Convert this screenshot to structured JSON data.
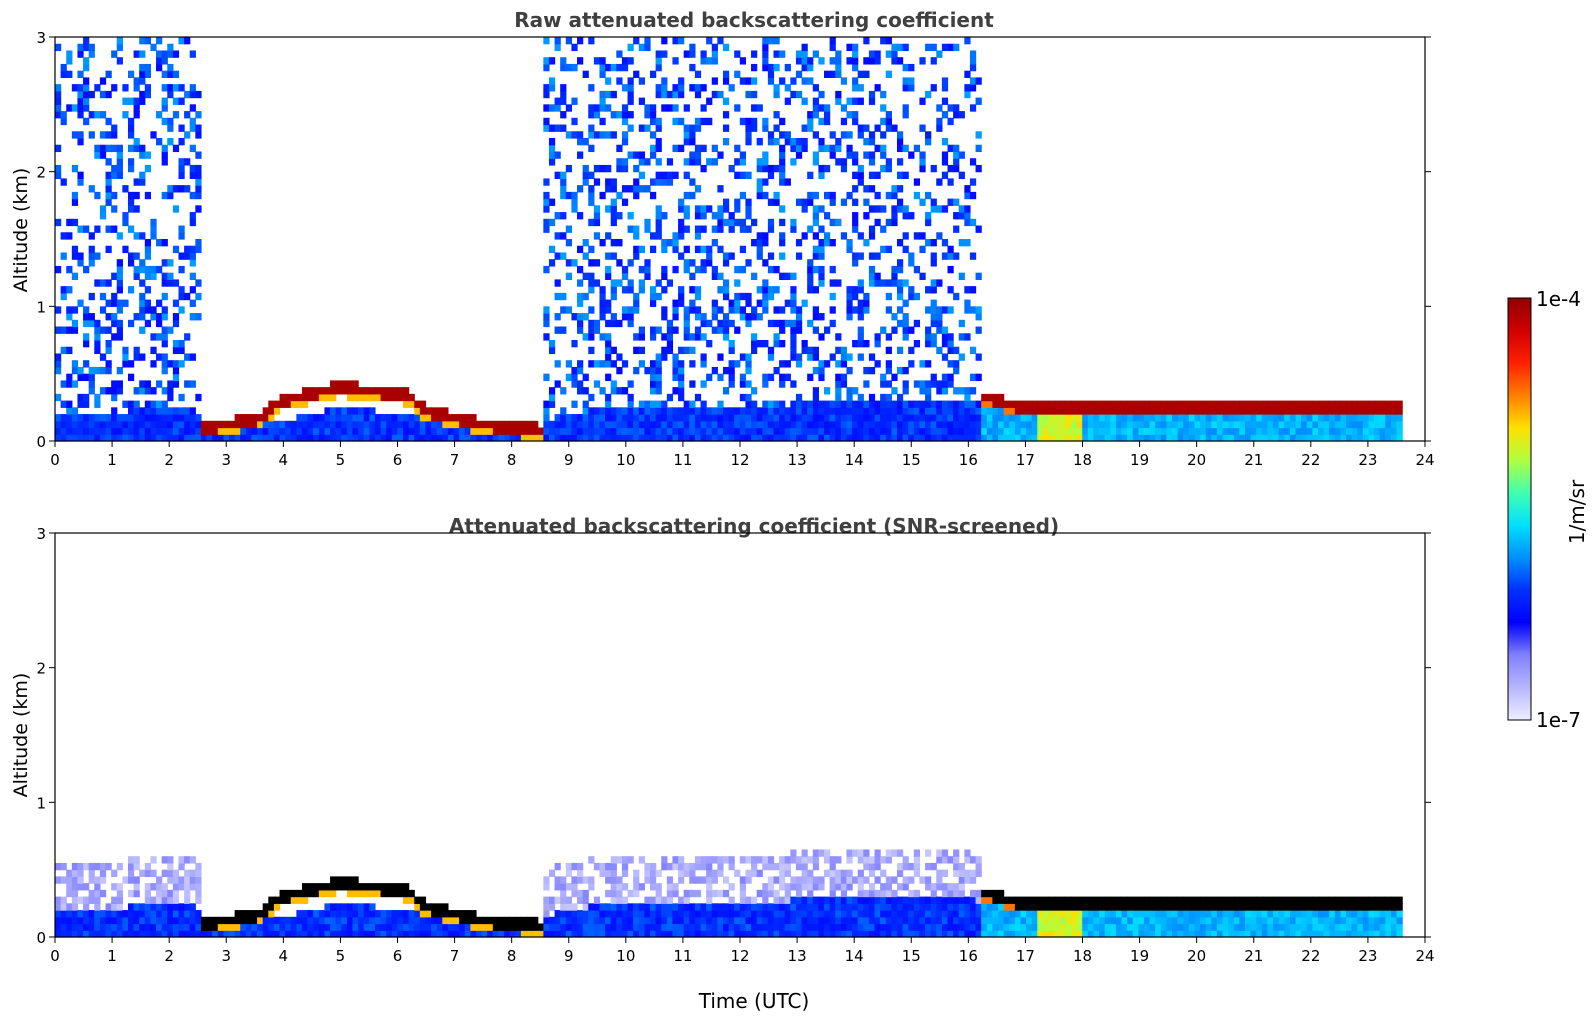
{
  "chart_data": [
    {
      "type": "heatmap",
      "title": "Raw attenuated backscattering coefficient",
      "xlabel": "",
      "ylabel": "Altitude (km)",
      "xlim": [
        0,
        24
      ],
      "ylim": [
        0,
        3
      ],
      "xticks": [
        "0",
        "1",
        "2",
        "3",
        "4",
        "5",
        "6",
        "7",
        "8",
        "9",
        "10",
        "11",
        "12",
        "13",
        "14",
        "15",
        "16",
        "17",
        "18",
        "19",
        "20",
        "21",
        "22",
        "23",
        "24"
      ],
      "yticks": [
        "0",
        "1",
        "2",
        "3"
      ],
      "data_end_hour": 23.6,
      "features": [
        {
          "name": "boundary-layer",
          "from": 0,
          "to": 23.6,
          "top_km": 0.25
        },
        {
          "name": "cloud-base",
          "from": 2.6,
          "to": 8.6,
          "base_km": [
            0.05,
            0.35
          ]
        },
        {
          "name": "fog-layer",
          "from": 16.2,
          "to": 23.6,
          "top_km": 0.38
        }
      ]
    },
    {
      "type": "heatmap",
      "title": "Attenuated backscattering coefficient (SNR-screened)",
      "xlabel": "Time (UTC)",
      "ylabel": "Altitude (km)",
      "xlim": [
        0,
        24
      ],
      "ylim": [
        0,
        3
      ],
      "xticks": [
        "0",
        "1",
        "2",
        "3",
        "4",
        "5",
        "6",
        "7",
        "8",
        "9",
        "10",
        "11",
        "12",
        "13",
        "14",
        "15",
        "16",
        "17",
        "18",
        "19",
        "20",
        "21",
        "22",
        "23",
        "24"
      ],
      "yticks": [
        "0",
        "1",
        "2",
        "3"
      ],
      "data_end_hour": 23.6
    }
  ],
  "colorbar": {
    "label": "1/m/sr",
    "max_label": "1e-4",
    "min_label": "1e-7",
    "stops": [
      "#eeeeff",
      "#b6b6ff",
      "#8080ff",
      "#0000ff",
      "#0030ff",
      "#0090ff",
      "#00e0ff",
      "#40ffb0",
      "#b0ff40",
      "#ffe000",
      "#ff8000",
      "#ff2000",
      "#d00000",
      "#900000"
    ]
  },
  "colors": {
    "title": "#404040",
    "text": "#000000"
  }
}
